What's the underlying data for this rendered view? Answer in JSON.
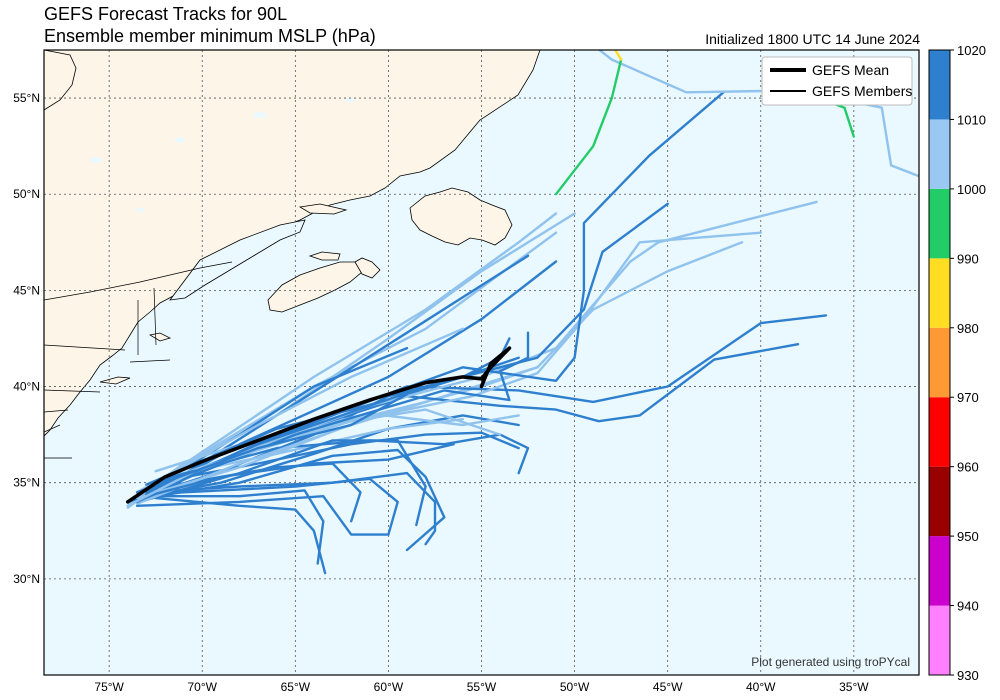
{
  "title_line1": "GEFS Forecast Tracks for 90L",
  "title_line2": "Ensemble member minimum MSLP (hPa)",
  "init_label": "Initialized 1800 UTC 14 June 2024",
  "credit": "Plot generated using troPYcal",
  "legend": {
    "mean_label": "GEFS Mean",
    "members_label": "GEFS Members"
  },
  "axes": {
    "x_ticks": [
      "75°W",
      "70°W",
      "65°W",
      "60°W",
      "55°W",
      "50°W",
      "45°W",
      "40°W",
      "35°W"
    ],
    "y_ticks": [
      "55°N",
      "50°N",
      "45°N",
      "40°N",
      "35°N",
      "30°N"
    ],
    "lon_range": [
      -78.5,
      -31.5
    ],
    "lat_range": [
      25,
      57.5
    ]
  },
  "colorbar": {
    "levels": [
      930,
      940,
      950,
      960,
      970,
      980,
      990,
      1000,
      1010,
      1020
    ],
    "colors": [
      "#ff80ff",
      "#cc00cc",
      "#990000",
      "#ff0000",
      "#ff9933",
      "#ffdd22",
      "#22cc66",
      "#99c8f2",
      "#2e7fce"
    ]
  },
  "colors": {
    "ocean": "#eaf9ff",
    "land": "#fcf5e8",
    "member_dark": "#2e7fce",
    "member_light": "#90c2ee",
    "member_green": "#22cc66",
    "member_yellow": "#ffdd22",
    "mean": "#000000"
  }
}
